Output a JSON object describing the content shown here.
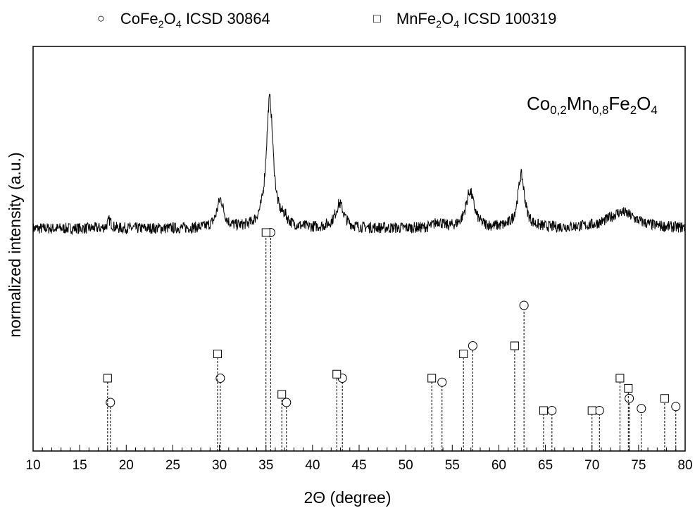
{
  "legend": [
    {
      "marker": "○",
      "html": "CoFe<sub>2</sub>O<sub>4</sub> ICSD 30864"
    },
    {
      "marker": "□",
      "html": "MnFe<sub>2</sub>O<sub>4</sub> ICSD 100319"
    }
  ],
  "sample_label_html": "Co<sub>0,2</sub>Mn<sub>0,8</sub>Fe<sub>2</sub>O<sub>4</sub>",
  "chart_data": {
    "type": "line",
    "xlabel": "2Θ (degree)",
    "ylabel": "normalized intensity (a.u.)",
    "xlim": [
      10,
      80
    ],
    "ylim": [
      0,
      100
    ],
    "x_ticks": [
      10,
      15,
      20,
      25,
      30,
      35,
      40,
      45,
      50,
      55,
      60,
      65,
      70,
      75,
      80
    ],
    "y_ticks_shown": false,
    "baseline": 55,
    "peaks": [
      {
        "x": 18.2,
        "height": 2.0,
        "width": 0.25
      },
      {
        "x": 30.1,
        "height": 7.0,
        "width": 0.45
      },
      {
        "x": 35.4,
        "height": 32.0,
        "width": 0.45
      },
      {
        "x": 37.0,
        "height": 1.5,
        "width": 0.35
      },
      {
        "x": 42.9,
        "height": 6.0,
        "width": 0.55
      },
      {
        "x": 53.5,
        "height": 1.5,
        "width": 0.5
      },
      {
        "x": 56.9,
        "height": 9.0,
        "width": 0.55
      },
      {
        "x": 62.4,
        "height": 13.0,
        "width": 0.45
      },
      {
        "x": 73.2,
        "height": 4.0,
        "width": 1.8
      }
    ],
    "noise_amplitude": 1.4,
    "reference_patterns": [
      {
        "name": "CoFe2O4 ICSD 30864",
        "marker": "circle",
        "peaks": [
          {
            "x": 18.3,
            "intensity": 12
          },
          {
            "x": 30.1,
            "intensity": 18
          },
          {
            "x": 35.5,
            "intensity": 54
          },
          {
            "x": 37.2,
            "intensity": 12
          },
          {
            "x": 43.2,
            "intensity": 18
          },
          {
            "x": 53.9,
            "intensity": 17
          },
          {
            "x": 57.2,
            "intensity": 26
          },
          {
            "x": 62.7,
            "intensity": 36
          },
          {
            "x": 65.7,
            "intensity": 10
          },
          {
            "x": 70.8,
            "intensity": 10
          },
          {
            "x": 74.0,
            "intensity": 13
          },
          {
            "x": 75.3,
            "intensity": 10.5
          },
          {
            "x": 79.0,
            "intensity": 11
          }
        ]
      },
      {
        "name": "MnFe2O4 ICSD 100319",
        "marker": "square",
        "peaks": [
          {
            "x": 18.0,
            "intensity": 18
          },
          {
            "x": 29.8,
            "intensity": 24
          },
          {
            "x": 35.0,
            "intensity": 54
          },
          {
            "x": 36.7,
            "intensity": 14
          },
          {
            "x": 42.6,
            "intensity": 19
          },
          {
            "x": 52.8,
            "intensity": 18
          },
          {
            "x": 56.2,
            "intensity": 24
          },
          {
            "x": 61.7,
            "intensity": 26
          },
          {
            "x": 64.8,
            "intensity": 10
          },
          {
            "x": 70.0,
            "intensity": 10
          },
          {
            "x": 73.0,
            "intensity": 18
          },
          {
            "x": 73.9,
            "intensity": 15.5
          },
          {
            "x": 77.8,
            "intensity": 13
          }
        ]
      }
    ]
  }
}
